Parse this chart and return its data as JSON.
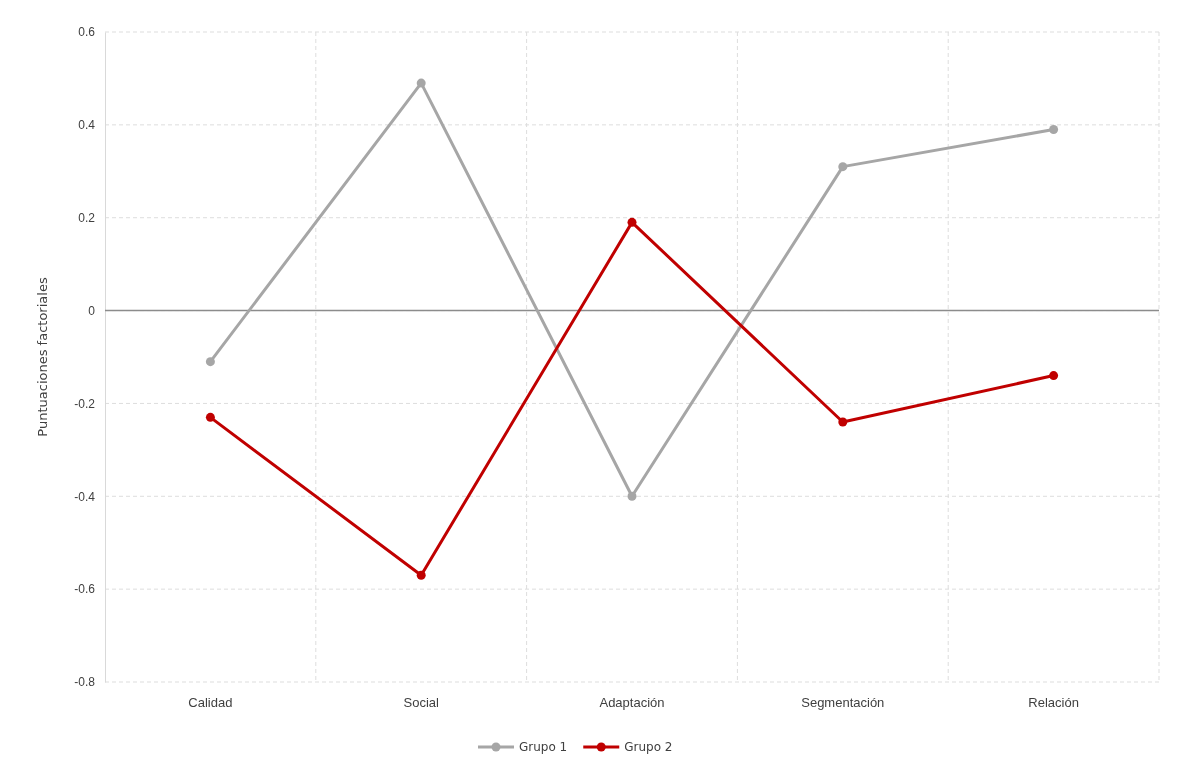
{
  "chart_data": {
    "type": "line",
    "ylabel": "Puntuaciones factoriales",
    "categories": [
      "Calidad",
      "Social",
      "Adaptación",
      "Segmentación",
      "Relación"
    ],
    "series": [
      {
        "name": "Grupo 1",
        "color": "#a6a6a6",
        "values": [
          -0.11,
          0.49,
          -0.4,
          0.31,
          0.39
        ]
      },
      {
        "name": "Grupo 2",
        "color": "#c00000",
        "values": [
          -0.23,
          -0.57,
          0.19,
          -0.24,
          -0.14
        ]
      }
    ],
    "ylim": [
      -0.8,
      0.6
    ],
    "yticks": [
      -0.8,
      -0.6,
      -0.4,
      -0.2,
      0,
      0.2,
      0.4,
      0.6
    ],
    "grid": true,
    "legend": "bottom",
    "marker": "circle",
    "line_style": "solid"
  }
}
